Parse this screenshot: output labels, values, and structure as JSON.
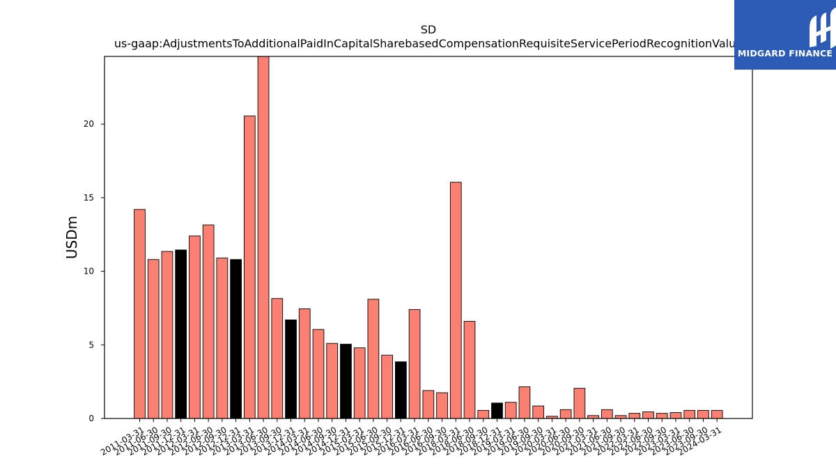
{
  "chart_data": {
    "type": "bar",
    "title": "SD",
    "subtitle": "us-gaap:AdjustmentsToAdditionalPaidInCapitalSharebasedCompensationRequisiteServicePeriodRecognitionValue",
    "ylabel": "USDm",
    "xlabel": "",
    "ylim": [
      0,
      24.6
    ],
    "yticks": [
      0,
      5,
      10,
      15,
      20
    ],
    "categories": [
      "2011-03-31",
      "2011-06-30",
      "2011-09-30",
      "2011-12-31",
      "2012-03-31",
      "2012-06-30",
      "2012-09-30",
      "2012-12-31",
      "2013-03-31",
      "2013-06-30",
      "2013-09-30",
      "2013-12-31",
      "2014-03-31",
      "2014-06-30",
      "2014-09-30",
      "2014-12-31",
      "2015-03-31",
      "2015-06-30",
      "2015-09-30",
      "2015-12-31",
      "2016-03-31",
      "2016-06-30",
      "2016-09-30",
      "2018-03-31",
      "2018-06-30",
      "2018-09-30",
      "2018-12-31",
      "2019-03-31",
      "2019-06-30",
      "2019-09-30",
      "2020-03-31",
      "2020-06-30",
      "2020-09-30",
      "2021-03-31",
      "2021-06-30",
      "2021-09-30",
      "2022-03-31",
      "2022-06-30",
      "2022-09-30",
      "2023-03-31",
      "2023-06-30",
      "2023-09-30",
      "2024-03-31"
    ],
    "values": [
      14.2,
      10.8,
      11.35,
      11.45,
      12.4,
      13.15,
      10.9,
      10.8,
      20.55,
      24.7,
      8.15,
      6.7,
      7.45,
      6.05,
      5.1,
      5.05,
      4.8,
      8.1,
      4.3,
      3.85,
      7.4,
      1.9,
      1.75,
      16.05,
      6.6,
      0.55,
      1.05,
      1.1,
      2.15,
      0.85,
      0.15,
      0.6,
      2.05,
      0.2,
      0.6,
      0.2,
      0.35,
      0.45,
      0.35,
      0.4,
      0.55,
      0.55,
      0.55
    ],
    "highlight": [
      false,
      false,
      false,
      true,
      false,
      false,
      false,
      true,
      false,
      false,
      false,
      true,
      false,
      false,
      false,
      true,
      false,
      false,
      false,
      true,
      false,
      false,
      false,
      false,
      false,
      false,
      true,
      false,
      false,
      false,
      false,
      false,
      false,
      false,
      false,
      false,
      false,
      false,
      false,
      false,
      false,
      false,
      false
    ],
    "colors": {
      "bar": "#fa8072",
      "highlight": "#000000",
      "edge": "#000000"
    },
    "grid": false,
    "legend": "none"
  },
  "logo": {
    "text": "MIDGARD FINANCE",
    "background": "#2b5bb5"
  }
}
